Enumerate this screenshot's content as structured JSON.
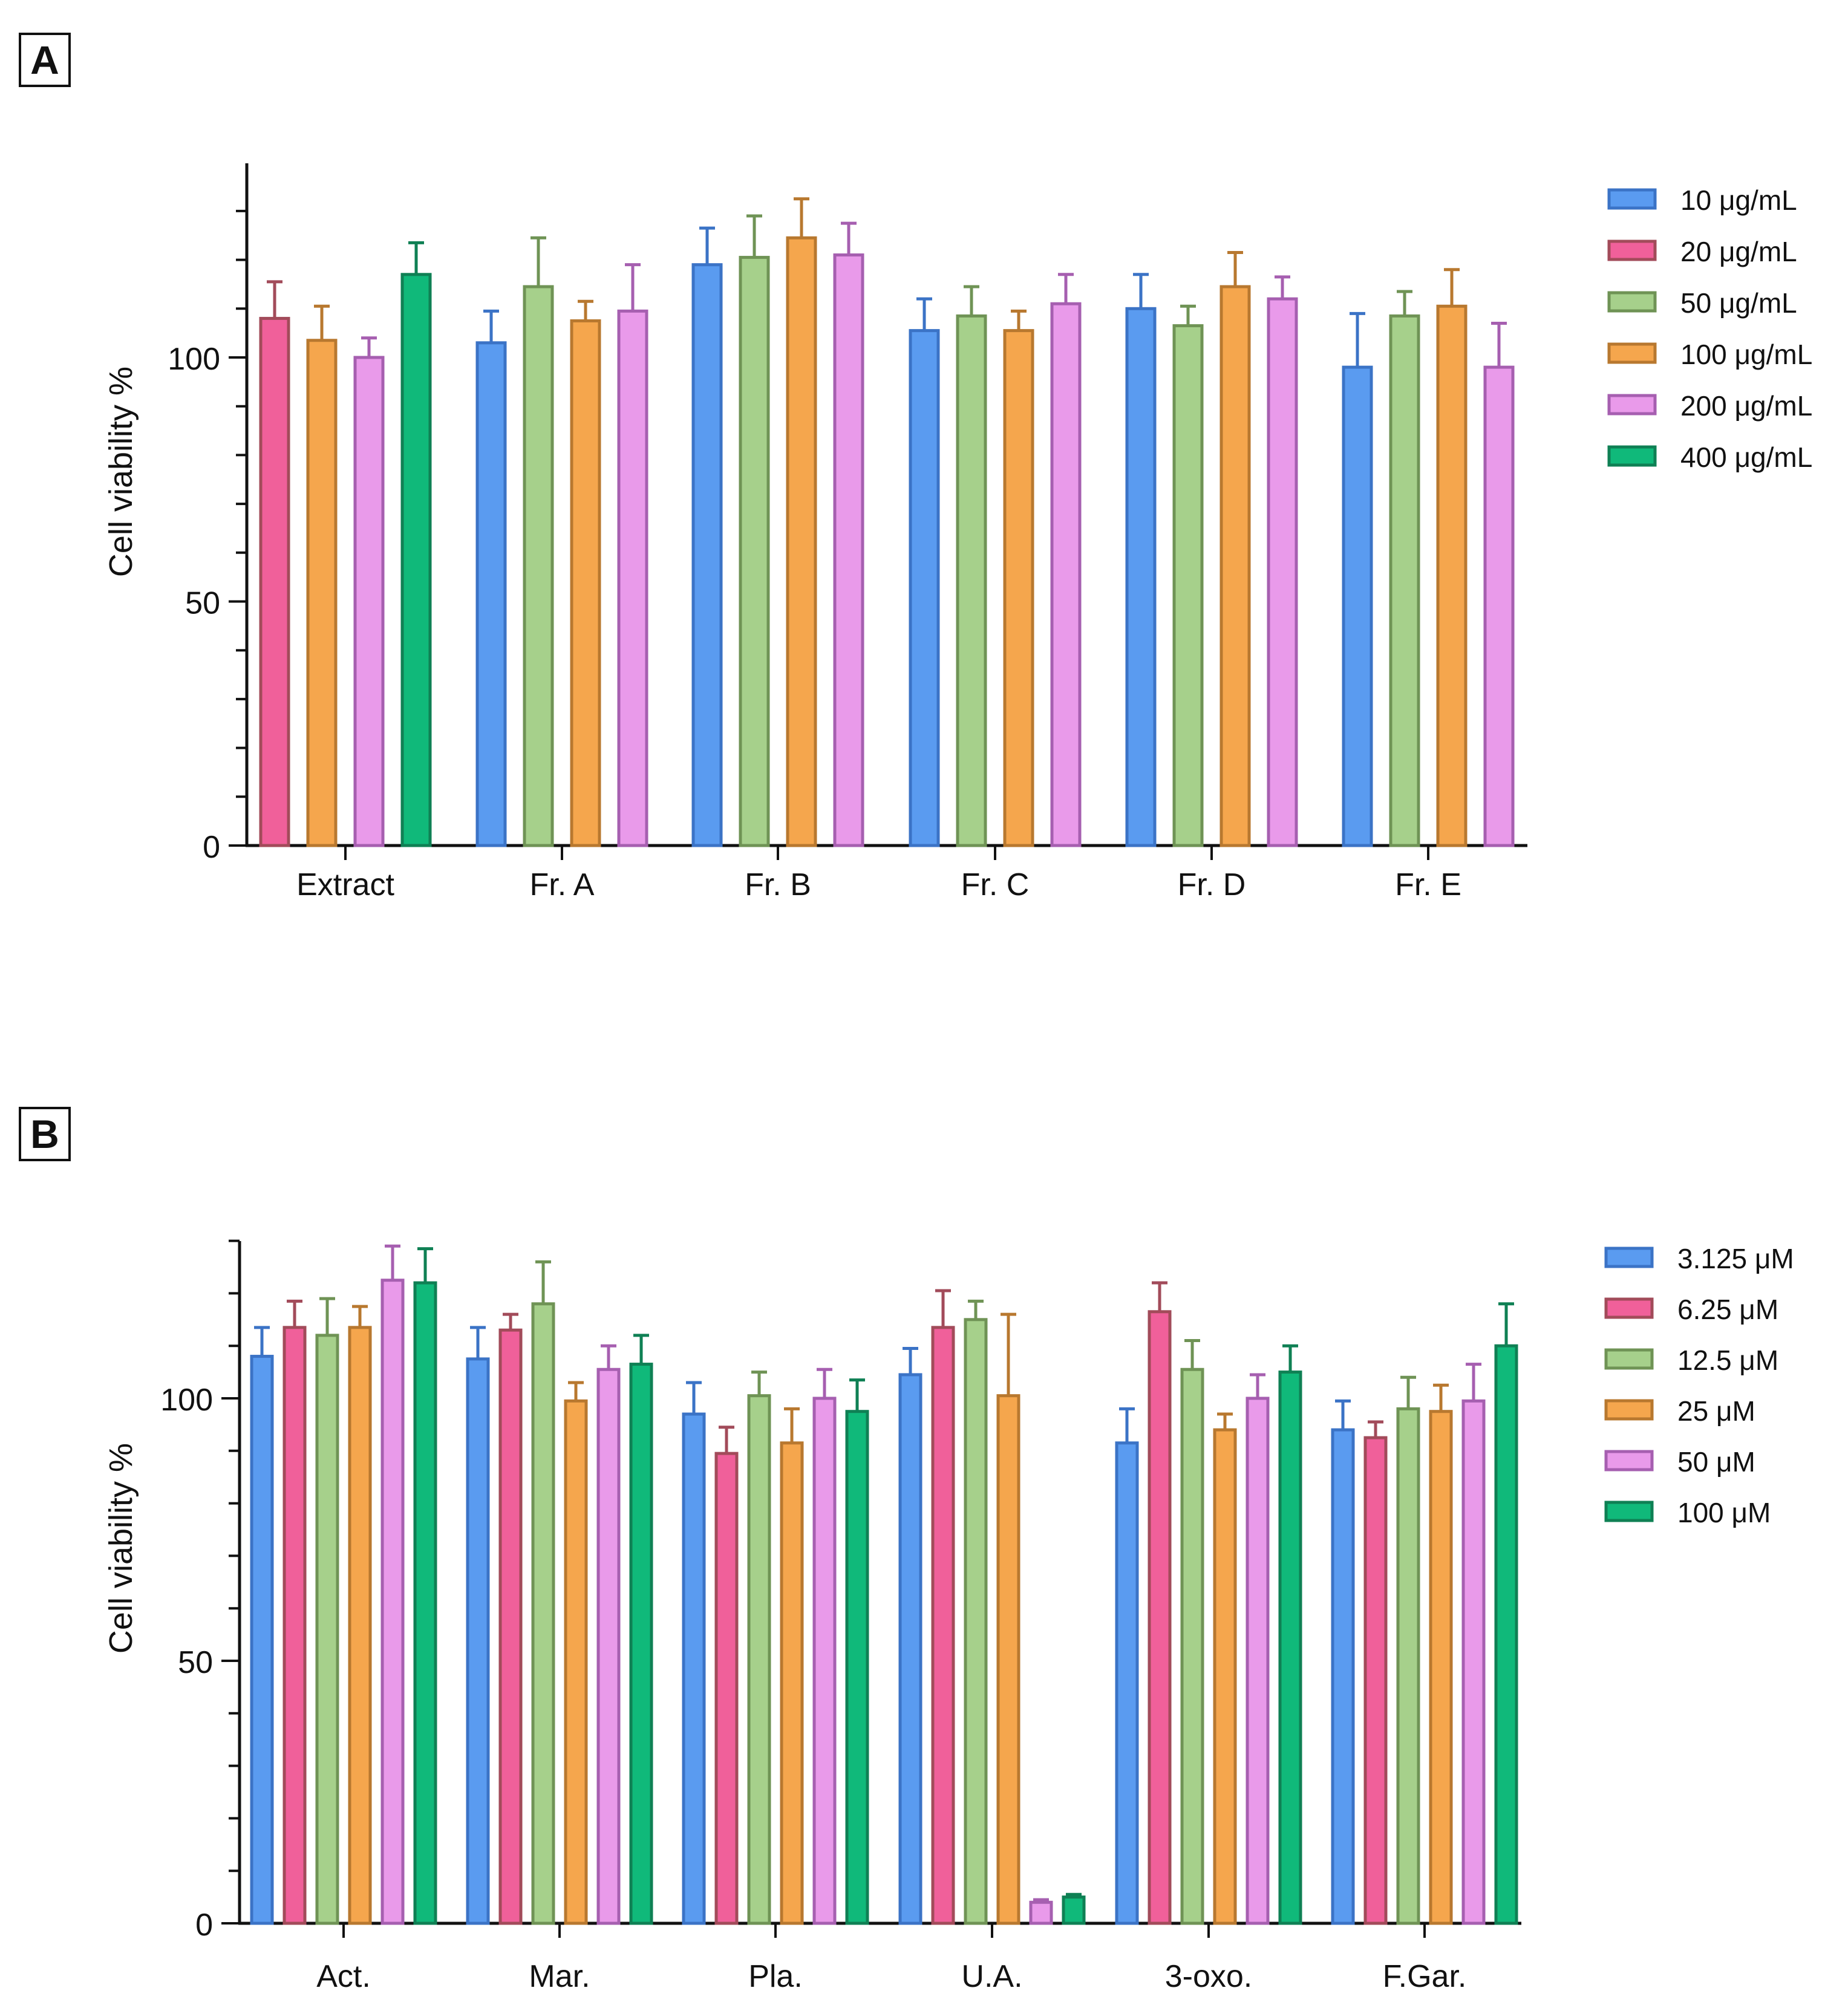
{
  "chart_data": [
    {
      "panel": "A",
      "type": "bar",
      "title": "",
      "ylabel": "Cell viability %",
      "xlabel": "",
      "ylim": [
        0,
        140
      ],
      "yticks": [
        0,
        50,
        100
      ],
      "legend_position": "top-right",
      "categories": [
        "Extract",
        "Fr. A",
        "Fr. B",
        "Fr. C",
        "Fr. D",
        "Fr. E"
      ],
      "series": [
        {
          "name": "10 μg/mL",
          "fill": "#5a9bf0",
          "stroke": "#3b73c6",
          "values": [
            null,
            103,
            119,
            105.5,
            110,
            98
          ],
          "errors": [
            null,
            6.5,
            7.5,
            6.5,
            7,
            11
          ]
        },
        {
          "name": "20 μg/mL",
          "fill": "#f0609a",
          "stroke": "#a24b5a",
          "values": [
            108,
            null,
            null,
            null,
            null,
            null
          ],
          "errors": [
            7.5,
            null,
            null,
            null,
            null,
            null
          ]
        },
        {
          "name": "50 μg/mL",
          "fill": "#a6d08b",
          "stroke": "#6f9355",
          "values": [
            null,
            114.5,
            120.5,
            108.5,
            106.5,
            108.5
          ],
          "errors": [
            null,
            10,
            8.5,
            6,
            4,
            5
          ]
        },
        {
          "name": "100 μg/mL",
          "fill": "#f5a64d",
          "stroke": "#b8782f",
          "values": [
            103.5,
            107.5,
            124.5,
            105.5,
            114.5,
            110.5
          ],
          "errors": [
            7,
            4,
            8,
            4,
            7,
            7.5
          ]
        },
        {
          "name": "200 μg/mL",
          "fill": "#e99aea",
          "stroke": "#a65fb0",
          "values": [
            100,
            109.5,
            121,
            111,
            112,
            98
          ],
          "errors": [
            4,
            9.5,
            6.5,
            6,
            4.5,
            9
          ]
        },
        {
          "name": "400 μg/mL",
          "fill": "#10b97a",
          "stroke": "#0f8054",
          "values": [
            117,
            null,
            null,
            null,
            null,
            null
          ],
          "errors": [
            6.5,
            null,
            null,
            null,
            null,
            null
          ]
        }
      ]
    },
    {
      "panel": "B",
      "type": "bar",
      "title": "",
      "ylabel": "Cell viability %",
      "xlabel": "",
      "ylim": [
        0,
        130
      ],
      "yticks": [
        0,
        50,
        100
      ],
      "legend_position": "top-right",
      "categories": [
        "Act.",
        "Mar.",
        "Pla.",
        "U.A.",
        "3-oxo.",
        "F.Gar."
      ],
      "series": [
        {
          "name": "3.125 μM",
          "fill": "#5a9bf0",
          "stroke": "#3b73c6",
          "values": [
            108,
            107.5,
            97,
            104.5,
            91.5,
            94
          ],
          "errors": [
            5.5,
            6,
            6,
            5,
            6.5,
            5.5
          ]
        },
        {
          "name": "6.25 μM",
          "fill": "#f0609a",
          "stroke": "#a24b5a",
          "values": [
            113.5,
            113,
            89.5,
            113.5,
            116.5,
            92.5
          ],
          "errors": [
            5,
            3,
            5,
            7,
            5.5,
            3
          ]
        },
        {
          "name": "12.5 μM",
          "fill": "#a6d08b",
          "stroke": "#6f9355",
          "values": [
            112,
            118,
            100.5,
            115,
            105.5,
            98
          ],
          "errors": [
            7,
            8,
            4.5,
            3.5,
            5.5,
            6
          ]
        },
        {
          "name": "25 μM",
          "fill": "#f5a64d",
          "stroke": "#b8782f",
          "values": [
            113.5,
            99.5,
            91.5,
            100.5,
            94,
            97.5
          ],
          "errors": [
            4,
            3.5,
            6.5,
            15.5,
            3,
            5
          ]
        },
        {
          "name": "50 μM",
          "fill": "#e99aea",
          "stroke": "#a65fb0",
          "values": [
            122.5,
            105.5,
            100,
            4,
            100,
            99.5
          ],
          "errors": [
            6.5,
            4.5,
            5.5,
            0.5,
            4.5,
            7
          ]
        },
        {
          "name": "100 μM",
          "fill": "#10b97a",
          "stroke": "#0f8054",
          "values": [
            122,
            106.5,
            97.5,
            5,
            105,
            110
          ],
          "errors": [
            6.5,
            5.5,
            6,
            0.5,
            5,
            8
          ]
        }
      ]
    }
  ]
}
